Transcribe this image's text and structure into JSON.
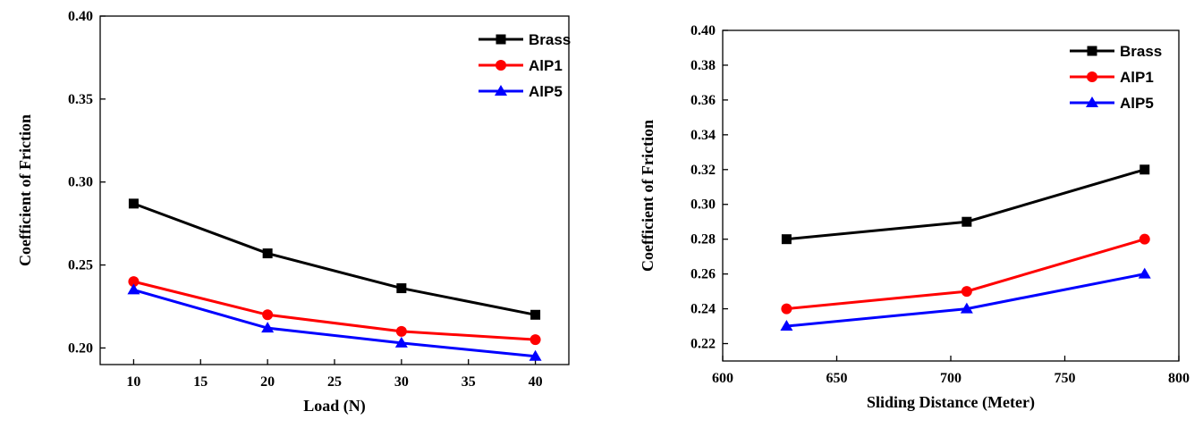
{
  "chart_data": [
    {
      "type": "line",
      "xlabel": "Load (N)",
      "ylabel": "Coefficient of Friction",
      "xlim": [
        7.5,
        42.5
      ],
      "ylim": [
        0.19,
        0.4
      ],
      "x_ticks": [
        10,
        15,
        20,
        25,
        30,
        35,
        40
      ],
      "y_ticks": [
        0.2,
        0.25,
        0.3,
        0.35,
        0.4
      ],
      "y_tick_labels": [
        "0.20",
        "0.25",
        "0.30",
        "0.35",
        "0.40"
      ],
      "x": [
        10,
        20,
        30,
        40
      ],
      "legend_position": "top-right",
      "series": [
        {
          "name": "Brass",
          "color": "#000000",
          "marker": "square",
          "values": [
            0.287,
            0.257,
            0.236,
            0.22
          ]
        },
        {
          "name": "AlP1",
          "color": "#ff0000",
          "marker": "circle",
          "values": [
            0.24,
            0.22,
            0.21,
            0.205
          ]
        },
        {
          "name": "AlP5",
          "color": "#0000ff",
          "marker": "triangle",
          "values": [
            0.235,
            0.212,
            0.203,
            0.195
          ]
        }
      ]
    },
    {
      "type": "line",
      "xlabel": "Sliding Distance (Meter)",
      "ylabel": "Coefficient of Friction",
      "xlim": [
        600,
        800
      ],
      "ylim": [
        0.21,
        0.4
      ],
      "x_ticks": [
        600,
        650,
        700,
        750,
        800
      ],
      "y_ticks": [
        0.22,
        0.24,
        0.26,
        0.28,
        0.3,
        0.32,
        0.34,
        0.36,
        0.38,
        0.4
      ],
      "y_tick_labels": [
        "0.22",
        "0.24",
        "0.26",
        "0.28",
        "0.30",
        "0.32",
        "0.34",
        "0.36",
        "0.38",
        "0.40"
      ],
      "x": [
        628,
        707,
        785
      ],
      "legend_position": "top-right",
      "series": [
        {
          "name": "Brass",
          "color": "#000000",
          "marker": "square",
          "values": [
            0.28,
            0.29,
            0.32
          ]
        },
        {
          "name": "AlP1",
          "color": "#ff0000",
          "marker": "circle",
          "values": [
            0.24,
            0.25,
            0.28
          ]
        },
        {
          "name": "AlP5",
          "color": "#0000ff",
          "marker": "triangle",
          "values": [
            0.23,
            0.24,
            0.26
          ]
        }
      ]
    }
  ]
}
